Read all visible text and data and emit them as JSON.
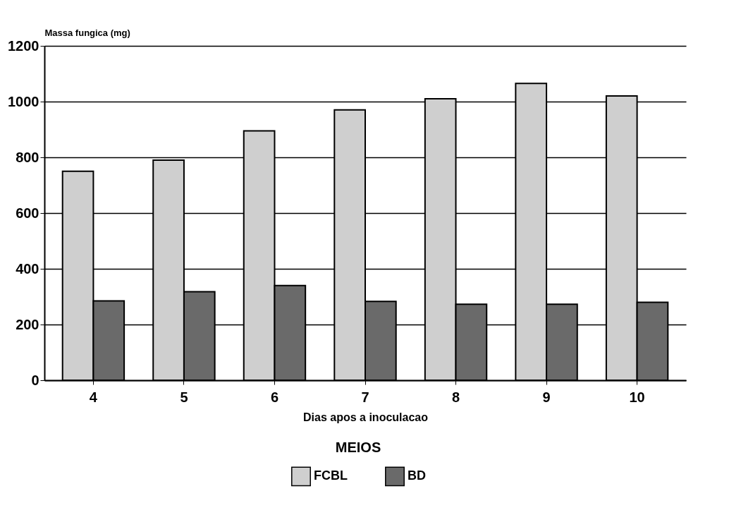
{
  "chart_data": {
    "type": "bar",
    "categories": [
      "4",
      "5",
      "6",
      "7",
      "8",
      "9",
      "10"
    ],
    "series": [
      {
        "name": "FCBL",
        "color": "#cfcfcf",
        "values": [
          750,
          790,
          895,
          970,
          1010,
          1065,
          1020
        ]
      },
      {
        "name": "BD",
        "color": "#6a6a6a",
        "values": [
          285,
          318,
          340,
          283,
          273,
          273,
          280
        ]
      }
    ],
    "xlabel": "Dias apos a inoculacao",
    "ylabel": "Massa fungica (mg)",
    "legend_title": "MEIOS",
    "ylim": [
      0,
      1200
    ],
    "yticks": [
      0,
      200,
      400,
      600,
      800,
      1000,
      1200
    ],
    "grid": "y",
    "legend": "bottom"
  }
}
